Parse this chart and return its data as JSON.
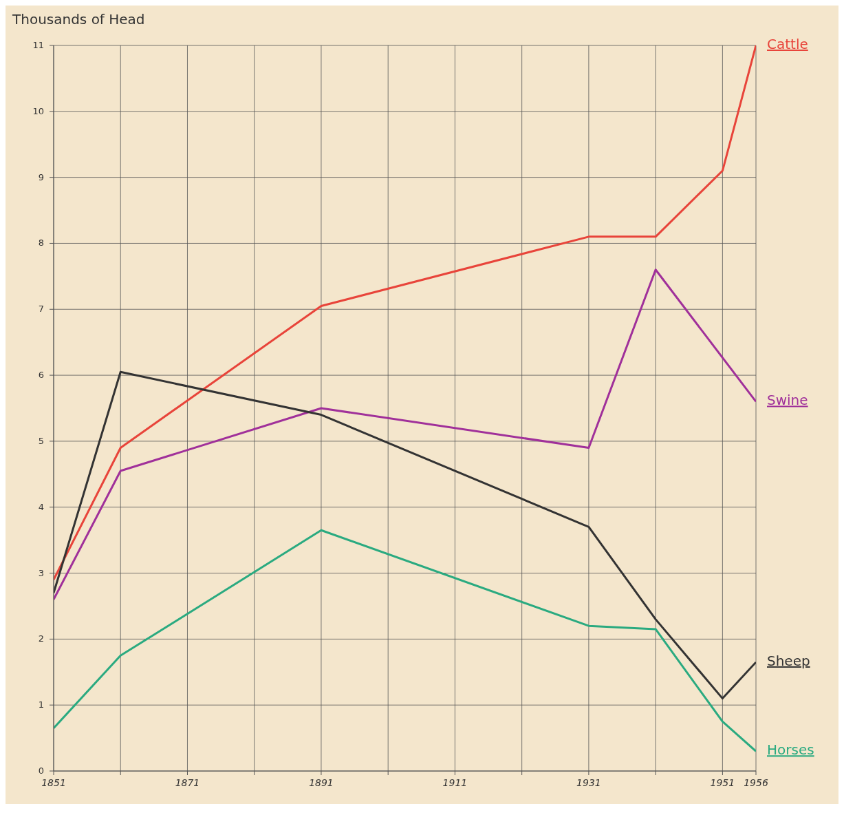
{
  "chart_data": {
    "type": "line",
    "ylabel": "Thousands of Head",
    "xlim": [
      1851,
      1956
    ],
    "ylim": [
      0,
      11
    ],
    "xticks": [
      1851,
      {
        "value": 1861,
        "label": null
      },
      1871,
      {
        "value": 1881,
        "label": null
      },
      1891,
      {
        "value": 1901,
        "label": null
      },
      1911,
      {
        "value": 1921,
        "label": null
      },
      1931,
      {
        "value": 1941,
        "label": null
      },
      1951,
      1956
    ],
    "yticks": [
      0,
      1,
      2,
      3,
      4,
      5,
      6,
      7,
      8,
      9,
      10,
      11
    ],
    "grid": true,
    "series": [
      {
        "name": "Cattle",
        "color": "#e8443a",
        "x": [
          1851,
          1861,
          1891,
          1931,
          1941,
          1951,
          1956
        ],
        "values": [
          2.9,
          4.9,
          7.05,
          8.1,
          8.1,
          9.1,
          11
        ]
      },
      {
        "name": "Swine",
        "color": "#a0309a",
        "x": [
          1851,
          1861,
          1891,
          1931,
          1941,
          1956
        ],
        "values": [
          2.6,
          4.55,
          5.5,
          4.9,
          7.6,
          5.6
        ]
      },
      {
        "name": "Sheep",
        "color": "#333333",
        "x": [
          1851,
          1861,
          1891,
          1931,
          1941,
          1951,
          1956
        ],
        "values": [
          2.7,
          6.05,
          5.4,
          3.7,
          2.3,
          1.1,
          1.65
        ]
      },
      {
        "name": "Horses",
        "color": "#2aaa80",
        "x": [
          1851,
          1861,
          1891,
          1931,
          1941,
          1951,
          1956
        ],
        "values": [
          0.65,
          1.75,
          3.65,
          2.2,
          2.15,
          0.75,
          0.3
        ]
      }
    ]
  }
}
